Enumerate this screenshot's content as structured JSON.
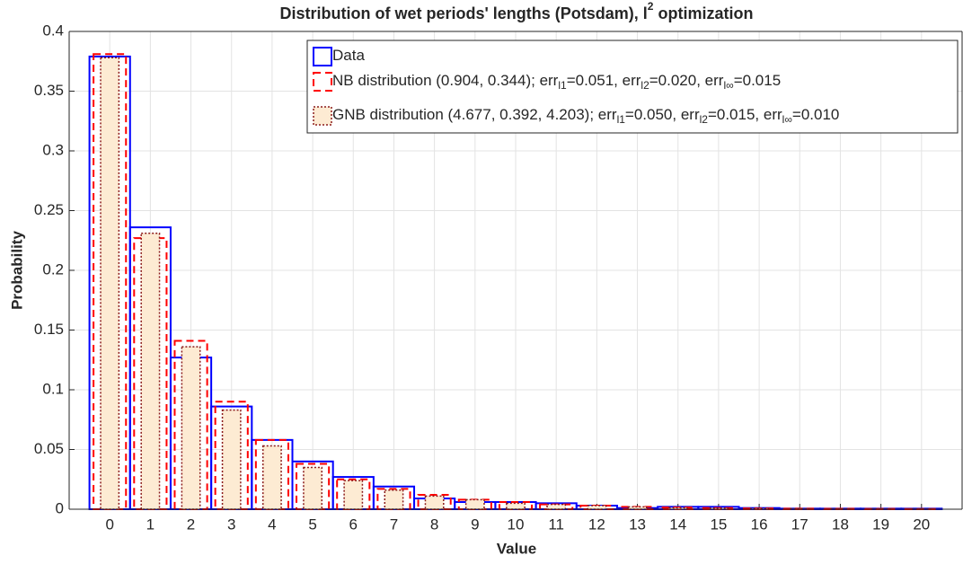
{
  "chart_data": {
    "type": "bar",
    "title": [
      {
        "text": "Distribution of wet periods' lengths (Potsdam), l"
      },
      {
        "text": "2",
        "sup": true
      },
      {
        "text": "optimization"
      }
    ],
    "xlabel": "Value",
    "ylabel": "Probability",
    "x": [
      0,
      1,
      2,
      3,
      4,
      5,
      6,
      7,
      8,
      9,
      10,
      11,
      12,
      13,
      14,
      15,
      16,
      17,
      18,
      19,
      20
    ],
    "xlim": [
      -1,
      21
    ],
    "xticks": [
      0,
      1,
      2,
      3,
      4,
      5,
      6,
      7,
      8,
      9,
      10,
      11,
      12,
      13,
      14,
      15,
      16,
      17,
      18,
      19,
      20
    ],
    "ylim": [
      0,
      0.4
    ],
    "yticks": [
      0,
      0.05,
      0.1,
      0.15,
      0.2,
      0.25,
      0.3,
      0.35,
      0.4
    ],
    "grid": true,
    "legend": "top-right",
    "series": [
      {
        "name": [
          {
            "text": "Data"
          }
        ],
        "color": "#0000ff",
        "values": [
          0.379,
          0.236,
          0.127,
          0.086,
          0.058,
          0.04,
          0.027,
          0.019,
          0.009,
          0.006,
          0.006,
          0.005,
          0.003,
          0.001,
          0.002,
          0.002,
          0.001,
          0.0005,
          0.0005,
          0.0005,
          0.0005
        ]
      },
      {
        "name": [
          {
            "text": "NB distribution (0.904, 0.344); err"
          },
          {
            "text": "l1",
            "sub": true
          },
          {
            "text": "=0.051, err"
          },
          {
            "text": "l2",
            "sub": true
          },
          {
            "text": "=0.020, err"
          },
          {
            "text": "l∞",
            "sub": true
          },
          {
            "text": "=0.015"
          }
        ],
        "color": "#ff0000",
        "values": [
          0.381,
          0.227,
          0.141,
          0.09,
          0.058,
          0.038,
          0.025,
          0.017,
          0.012,
          0.008,
          0.006,
          0.004,
          0.003,
          0.002,
          0.0015,
          0.001,
          0.0007,
          0.0005,
          0.0004,
          0.0003,
          0.0002
        ]
      },
      {
        "name": [
          {
            "text": "GNB distribution (4.677, 0.392, 4.203); err"
          },
          {
            "text": "l1",
            "sub": true
          },
          {
            "text": "=0.050, err"
          },
          {
            "text": "l2",
            "sub": true
          },
          {
            "text": "=0.015, err"
          },
          {
            "text": "l∞",
            "sub": true
          },
          {
            "text": "=0.010"
          }
        ],
        "color": "#8b1a1a",
        "fill": "#fdebd3",
        "values": [
          0.378,
          0.231,
          0.136,
          0.083,
          0.053,
          0.035,
          0.024,
          0.016,
          0.011,
          0.008,
          0.005,
          0.004,
          0.003,
          0.002,
          0.0013,
          0.0009,
          0.0006,
          0.0004,
          0.0003,
          0.0002,
          0.0001
        ]
      }
    ]
  }
}
